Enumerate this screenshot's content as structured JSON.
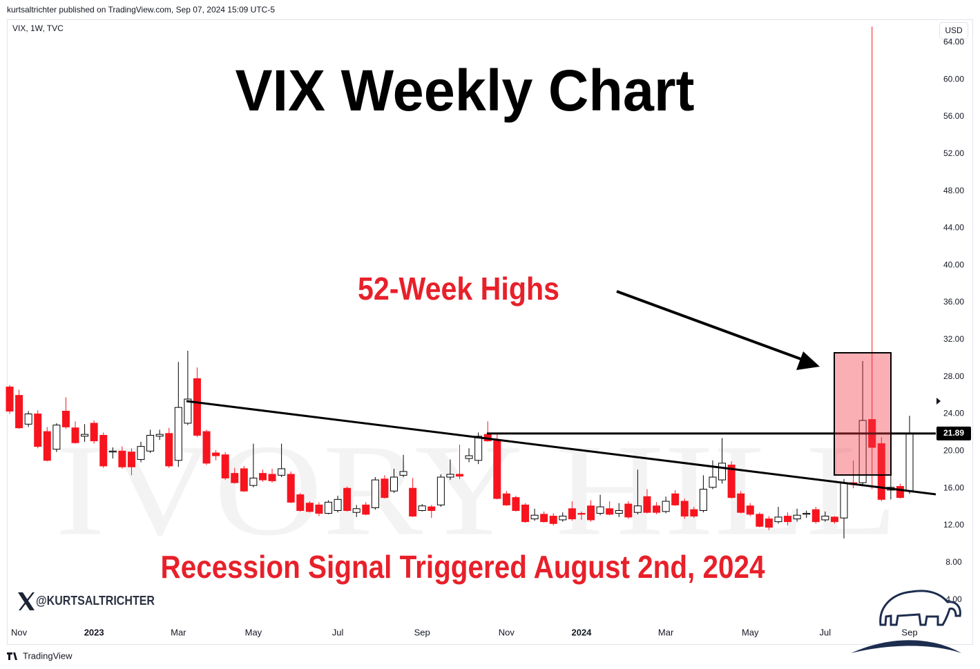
{
  "header": {
    "publisher": "kurtsaltrichter published on TradingView.com, Sep 07, 2024 15:09 UTC-5",
    "symbol": "VIX, 1W, TVC",
    "currency": "USD",
    "brand": "TradingView",
    "handle": "@KURTSALTRICHTER",
    "watermark": "IVORY HILL"
  },
  "chart_data": {
    "type": "candlestick",
    "title": "VIX Weekly Chart",
    "annotations": [
      "52-Week Highs",
      "Recession Signal Triggered August 2nd, 2024"
    ],
    "up_color": "#ffffff",
    "down_color": "#f7141e",
    "outline_color": "#000000",
    "categories": [
      null,
      "Nov",
      null,
      null,
      null,
      null,
      null,
      null,
      null,
      "2023",
      null,
      null,
      null,
      null,
      null,
      null,
      null,
      null,
      "Mar",
      null,
      null,
      null,
      null,
      null,
      null,
      null,
      "May",
      null,
      null,
      null,
      null,
      null,
      null,
      null,
      null,
      "Jul",
      null,
      null,
      null,
      null,
      null,
      null,
      null,
      null,
      "Sep",
      null,
      null,
      null,
      null,
      null,
      null,
      null,
      null,
      "Nov",
      null,
      null,
      null,
      null,
      null,
      null,
      null,
      "2024",
      null,
      null,
      null,
      null,
      null,
      null,
      null,
      null,
      "Mar",
      null,
      null,
      null,
      null,
      null,
      null,
      null,
      null,
      "May",
      null,
      null,
      null,
      null,
      null,
      null,
      null,
      "Jul",
      null,
      null,
      null,
      null,
      null,
      null,
      null,
      null,
      "Sep"
    ],
    "open": [
      26.9,
      26.0,
      22.9,
      24.0,
      22.1,
      20.2,
      24.3,
      22.5,
      21.6,
      23.0,
      21.7,
      19.9,
      20.0,
      19.9,
      19.1,
      20.0,
      21.6,
      21.9,
      19.0,
      23.0,
      27.8,
      22.1,
      19.8,
      19.6,
      17.6,
      18.1,
      16.3,
      17.6,
      17.5,
      17.4,
      17.5,
      15.3,
      14.4,
      14.2,
      13.3,
      13.6,
      16.0,
      13.4,
      14.2,
      13.9,
      17.0,
      15.7,
      17.4,
      16.0,
      13.6,
      14.0,
      14.2,
      17.2,
      17.5,
      19.2,
      19.0,
      21.8,
      21.1,
      15.4,
      15.0,
      14.2,
      12.7,
      13.2,
      13.0,
      12.6,
      13.8,
      13.3,
      14.1,
      13.3,
      13.8,
      13.3,
      14.3,
      13.4,
      15.1,
      14.1,
      13.5,
      15.4,
      14.6,
      13.7,
      13.6,
      16.1,
      16.9,
      18.5,
      15.4,
      14.1,
      13.2,
      12.7,
      12.4,
      13.0,
      12.7,
      13.2,
      13.7,
      12.6,
      12.9,
      12.8,
      16.6,
      16.6,
      23.4,
      20.8,
      15.8,
      16.2,
      15.7
    ],
    "high": [
      27.1,
      26.6,
      24.3,
      24.4,
      22.6,
      23.0,
      25.8,
      23.2,
      22.9,
      23.3,
      22.0,
      20.4,
      20.5,
      20.3,
      21.0,
      22.3,
      22.3,
      22.5,
      29.6,
      30.8,
      29.0,
      22.3,
      20.1,
      19.9,
      18.2,
      18.4,
      20.8,
      18.0,
      18.1,
      20.8,
      17.8,
      15.5,
      14.6,
      14.5,
      14.7,
      15.2,
      16.2,
      14.2,
      14.5,
      17.2,
      17.4,
      18.1,
      19.6,
      17.1,
      14.3,
      14.2,
      17.5,
      19.1,
      20.7,
      20.3,
      22.0,
      23.2,
      22.0,
      15.7,
      15.2,
      14.4,
      13.8,
      13.5,
      13.3,
      13.4,
      14.6,
      13.5,
      14.7,
      15.3,
      14.6,
      14.4,
      14.6,
      18.0,
      15.9,
      14.5,
      15.1,
      15.8,
      14.9,
      14.0,
      17.4,
      19.0,
      21.4,
      18.9,
      15.7,
      14.4,
      13.4,
      13.0,
      14.0,
      13.4,
      13.8,
      13.6,
      14.0,
      13.5,
      13.0,
      17.0,
      19.0,
      29.7,
      65.7,
      21.5,
      17.8,
      16.5,
      23.8
    ],
    "low": [
      24.0,
      22.4,
      22.6,
      20.3,
      18.9,
      19.9,
      22.4,
      20.8,
      21.0,
      20.8,
      18.2,
      19.2,
      18.1,
      17.4,
      18.8,
      19.8,
      21.2,
      18.2,
      18.3,
      22.8,
      21.5,
      18.5,
      19.0,
      16.9,
      16.5,
      15.6,
      16.1,
      16.7,
      16.6,
      17.2,
      14.4,
      13.5,
      13.4,
      13.0,
      13.2,
      13.4,
      13.5,
      12.9,
      13.1,
      13.7,
      14.9,
      15.5,
      17.2,
      12.9,
      13.5,
      12.8,
      14.0,
      16.9,
      17.0,
      18.8,
      18.6,
      21.0,
      14.8,
      14.1,
      13.5,
      12.3,
      12.5,
      12.3,
      12.0,
      12.4,
      12.5,
      12.6,
      12.4,
      13.1,
      13.1,
      12.9,
      12.7,
      13.2,
      13.3,
      13.2,
      13.3,
      14.1,
      12.7,
      12.8,
      13.4,
      15.9,
      16.5,
      14.9,
      13.3,
      13.0,
      11.8,
      11.5,
      12.2,
      12.0,
      12.4,
      12.8,
      12.2,
      12.4,
      12.2,
      10.6,
      16.0,
      16.2,
      15.9,
      14.6,
      14.8,
      14.9,
      15.4
    ],
    "close": [
      24.3,
      22.5,
      24.0,
      20.5,
      19.0,
      22.8,
      22.6,
      20.9,
      21.8,
      21.1,
      18.4,
      20.0,
      18.3,
      18.3,
      20.5,
      21.7,
      21.8,
      18.4,
      24.7,
      25.6,
      21.7,
      18.7,
      19.5,
      17.1,
      16.6,
      15.7,
      17.1,
      16.9,
      16.8,
      18.1,
      14.5,
      13.6,
      13.5,
      13.3,
      14.5,
      14.8,
      13.6,
      13.8,
      13.2,
      16.9,
      15.0,
      17.2,
      17.8,
      13.0,
      14.1,
      13.6,
      17.2,
      17.5,
      17.3,
      19.5,
      21.6,
      21.1,
      14.9,
      14.2,
      13.6,
      12.4,
      13.1,
      12.4,
      12.2,
      13.0,
      12.7,
      13.2,
      12.6,
      14.0,
      13.2,
      13.6,
      12.9,
      14.1,
      13.4,
      13.4,
      14.6,
      14.2,
      13.0,
      13.0,
      15.9,
      17.2,
      18.7,
      15.0,
      13.4,
      13.2,
      11.9,
      11.8,
      12.9,
      12.4,
      13.1,
      13.3,
      12.4,
      13.0,
      12.4,
      16.6,
      16.4,
      23.3,
      20.4,
      14.8,
      16.1,
      15.0,
      21.89
    ],
    "ylim": [
      1.3,
      66.4
    ],
    "yticks": [
      {
        "value": 4,
        "label": "4.00"
      },
      {
        "value": 8,
        "label": "8.00"
      },
      {
        "value": 12,
        "label": "12.00"
      },
      {
        "value": 16,
        "label": "16.00"
      },
      {
        "value": 20,
        "label": "20.00"
      },
      {
        "value": 24,
        "label": "24.00"
      },
      {
        "value": 28,
        "label": "28.00"
      },
      {
        "value": 32,
        "label": "32.00"
      },
      {
        "value": 36,
        "label": "36.00"
      },
      {
        "value": 40,
        "label": "40.00"
      },
      {
        "value": 44,
        "label": "44.00"
      },
      {
        "value": 48,
        "label": "48.00"
      },
      {
        "value": 52,
        "label": "52.00"
      },
      {
        "value": 56,
        "label": "56.00"
      },
      {
        "value": 60,
        "label": "60.00"
      },
      {
        "value": 64,
        "label": "64.00"
      }
    ],
    "grid": false
  }
}
